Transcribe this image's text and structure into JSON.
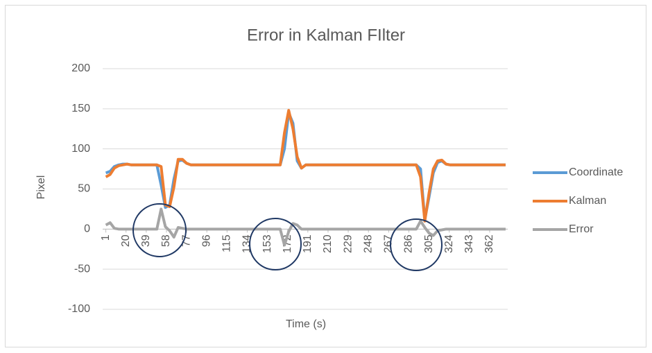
{
  "chart_data": {
    "type": "line",
    "title": "Error in Kalman FIlter",
    "x_label": "Time (s)",
    "y_label": "Pixel",
    "x": [
      1,
      5,
      9,
      13,
      17,
      21,
      25,
      29,
      33,
      37,
      41,
      45,
      49,
      53,
      57,
      61,
      65,
      69,
      73,
      77,
      81,
      85,
      89,
      93,
      97,
      101,
      105,
      109,
      113,
      117,
      121,
      125,
      129,
      133,
      137,
      141,
      145,
      149,
      153,
      157,
      161,
      165,
      169,
      173,
      177,
      181,
      185,
      189,
      193,
      197,
      201,
      205,
      209,
      213,
      217,
      221,
      225,
      229,
      233,
      237,
      241,
      245,
      249,
      253,
      257,
      261,
      265,
      269,
      273,
      277,
      281,
      285,
      289,
      293,
      297,
      301,
      305,
      309,
      313,
      317,
      321,
      325,
      329,
      333,
      337,
      341,
      345,
      349,
      353,
      357,
      361,
      365,
      369,
      373,
      377
    ],
    "series": [
      {
        "name": "Coordinate",
        "color": "#5b9bd5",
        "values": [
          70,
          72,
          78,
          80,
          81,
          81,
          80,
          80,
          80,
          80,
          80,
          80,
          80,
          55,
          27,
          30,
          62,
          85,
          86,
          82,
          80,
          80,
          80,
          80,
          80,
          80,
          80,
          80,
          80,
          80,
          80,
          80,
          80,
          80,
          80,
          80,
          80,
          80,
          80,
          80,
          80,
          80,
          100,
          145,
          132,
          85,
          76,
          80,
          80,
          80,
          80,
          80,
          80,
          80,
          80,
          80,
          80,
          80,
          80,
          80,
          80,
          80,
          80,
          80,
          80,
          80,
          80,
          80,
          80,
          80,
          80,
          80,
          80,
          80,
          75,
          12,
          40,
          70,
          83,
          85,
          81,
          80,
          80,
          80,
          80,
          80,
          80,
          80,
          80,
          80,
          80,
          80,
          80,
          80,
          80
        ]
      },
      {
        "name": "Kalman",
        "color": "#ed7d31",
        "values": [
          65,
          68,
          76,
          79,
          80,
          81,
          80,
          80,
          80,
          80,
          80,
          80,
          80,
          78,
          30,
          28,
          52,
          87,
          87,
          82,
          80,
          80,
          80,
          80,
          80,
          80,
          80,
          80,
          80,
          80,
          80,
          80,
          80,
          80,
          80,
          80,
          80,
          80,
          80,
          80,
          80,
          80,
          120,
          148,
          125,
          90,
          76,
          80,
          80,
          80,
          80,
          80,
          80,
          80,
          80,
          80,
          80,
          80,
          80,
          80,
          80,
          80,
          80,
          80,
          80,
          80,
          80,
          80,
          80,
          80,
          80,
          80,
          80,
          80,
          65,
          10,
          45,
          75,
          85,
          86,
          81,
          80,
          80,
          80,
          80,
          80,
          80,
          80,
          80,
          80,
          80,
          80,
          80,
          80,
          80
        ]
      },
      {
        "name": "Error",
        "color": "#a5a5a5",
        "values": [
          5,
          8,
          1,
          0,
          0,
          0,
          0,
          0,
          0,
          0,
          0,
          0,
          0,
          25,
          3,
          -2,
          -10,
          2,
          1,
          0,
          0,
          0,
          0,
          0,
          0,
          0,
          0,
          0,
          0,
          0,
          0,
          0,
          0,
          0,
          0,
          0,
          0,
          0,
          0,
          0,
          0,
          0,
          -20,
          -3,
          7,
          5,
          0,
          0,
          0,
          0,
          0,
          0,
          0,
          0,
          0,
          0,
          0,
          0,
          0,
          0,
          0,
          0,
          0,
          0,
          0,
          0,
          0,
          0,
          0,
          0,
          0,
          0,
          0,
          0,
          10,
          2,
          -5,
          -8,
          -2,
          -1,
          0,
          0,
          0,
          0,
          0,
          0,
          0,
          0,
          0,
          0,
          0,
          0,
          0,
          0,
          0
        ]
      }
    ],
    "xlim": [
      -2,
      379
    ],
    "xticks": [
      1,
      20,
      39,
      58,
      77,
      96,
      115,
      134,
      153,
      172,
      191,
      210,
      229,
      248,
      267,
      286,
      305,
      324,
      343,
      362
    ],
    "ylim": [
      -100,
      200
    ],
    "yticks": [
      -100,
      -50,
      0,
      50,
      100,
      150,
      200
    ],
    "grid": true,
    "legend": "right"
  }
}
